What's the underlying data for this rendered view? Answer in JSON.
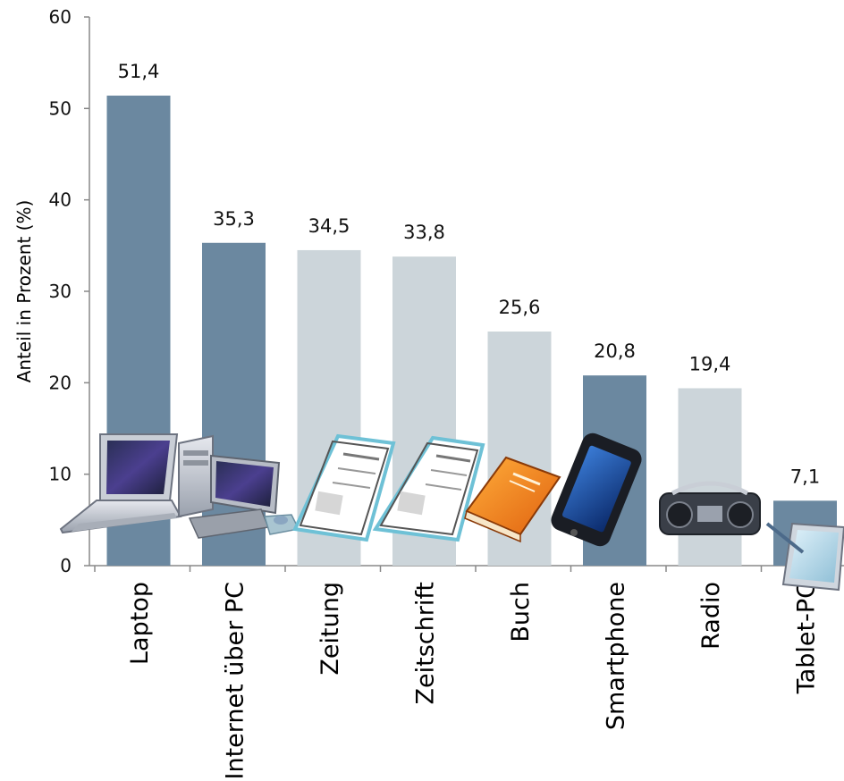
{
  "chart_data": {
    "type": "bar",
    "title": "",
    "xlabel": "",
    "ylabel": "Anteil in Prozent (%)",
    "ylim": [
      0,
      60
    ],
    "yticks": [
      0,
      10,
      20,
      30,
      40,
      50,
      60
    ],
    "grid": false,
    "categories": [
      "Laptop",
      "Internet über PC",
      "Zeitung",
      "Zeitschrift",
      "Buch",
      "Smartphone",
      "Radio",
      "Tablet-PC"
    ],
    "values": [
      51.4,
      35.3,
      34.5,
      33.8,
      25.6,
      20.8,
      19.4,
      7.1
    ],
    "value_labels": [
      "51,4",
      "35,3",
      "34,5",
      "33,8",
      "25,6",
      "20,8",
      "19,4",
      "7,1"
    ],
    "bar_colors": [
      "#6b88a0",
      "#6b88a0",
      "#ccd5da",
      "#ccd5da",
      "#ccd5da",
      "#6b88a0",
      "#ccd5da",
      "#6b88a0"
    ],
    "icons": [
      "laptop-icon",
      "desktop-pc-icon",
      "newspaper-icon",
      "magazine-icon",
      "book-icon",
      "smartphone-icon",
      "radio-icon",
      "tablet-pc-icon"
    ]
  }
}
